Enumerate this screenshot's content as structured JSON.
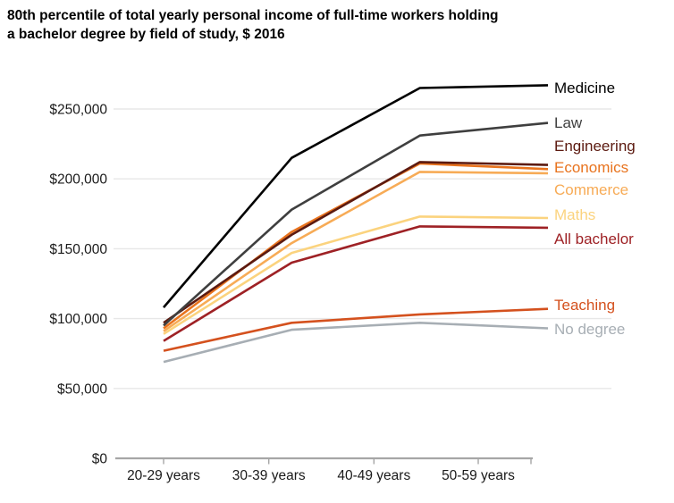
{
  "title": "80th percentile of total yearly personal income of full-time workers holding a bachelor degree by field of study, $ 2016",
  "chart_data": {
    "type": "line",
    "title": "80th percentile of total yearly personal income of full-time workers holding a bachelor degree by field of study, $ 2016",
    "x_categories": [
      "20-29 years",
      "30-39 years",
      "40-49 years",
      "50-59 years"
    ],
    "y_ticks": [
      {
        "value": 0,
        "label": "$0"
      },
      {
        "value": 50000,
        "label": "$50,000"
      },
      {
        "value": 100000,
        "label": "$100,000"
      },
      {
        "value": 150000,
        "label": "$150,000"
      },
      {
        "value": 200000,
        "label": "$200,000"
      },
      {
        "value": 250000,
        "label": "$250,000"
      }
    ],
    "ylim": [
      0,
      270000
    ],
    "grid": true,
    "legend_position": "direct-labels-right",
    "series": [
      {
        "name": "Medicine",
        "color": "#000000",
        "values": [
          108000,
          215000,
          265000,
          267000
        ]
      },
      {
        "name": "Law",
        "color": "#3f3f3f",
        "values": [
          95000,
          178000,
          231000,
          240000
        ]
      },
      {
        "name": "Engineering",
        "color": "#5c1a10",
        "values": [
          97000,
          160000,
          212000,
          210000
        ]
      },
      {
        "name": "Economics",
        "color": "#e8731e",
        "values": [
          93000,
          162000,
          211000,
          207000
        ]
      },
      {
        "name": "Commerce",
        "color": "#f7ab56",
        "values": [
          91000,
          154000,
          205000,
          204000
        ]
      },
      {
        "name": "Maths",
        "color": "#fbd37e",
        "values": [
          89000,
          147000,
          173000,
          172000
        ]
      },
      {
        "name": "All bachelor",
        "color": "#9e2125",
        "values": [
          84000,
          140000,
          166000,
          165000
        ]
      },
      {
        "name": "Teaching",
        "color": "#d4511e",
        "values": [
          77000,
          97000,
          103000,
          107000
        ]
      },
      {
        "name": "No degree",
        "color": "#a7aeb4",
        "values": [
          69000,
          92000,
          97000,
          93000
        ]
      }
    ]
  },
  "colors": {
    "background": "#ffffff",
    "gridline": "#e7e7e7",
    "axis": "#a6a6a6",
    "tick_label": "#1a1a1a"
  }
}
